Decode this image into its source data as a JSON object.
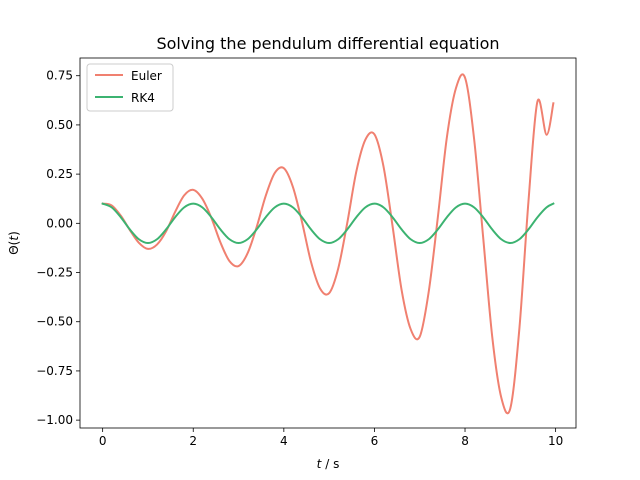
{
  "chart_data": {
    "type": "line",
    "title": "Solving the pendulum differential equation",
    "xlabel": "t / s",
    "ylabel": "Θ(t)",
    "xlim": [
      -0.5,
      10.45
    ],
    "ylim": [
      -1.04,
      0.84
    ],
    "xticks": [
      0,
      2,
      4,
      6,
      8,
      10
    ],
    "yticks": [
      -1.0,
      -0.75,
      -0.5,
      -0.25,
      0.0,
      0.25,
      0.5,
      0.75
    ],
    "xtick_labels": [
      "0",
      "2",
      "4",
      "6",
      "8",
      "10"
    ],
    "ytick_labels": [
      "−1.00",
      "−0.75",
      "−0.50",
      "−0.25",
      "0.00",
      "0.25",
      "0.50",
      "0.75"
    ],
    "grid": false,
    "legend_position": "upper left",
    "series": [
      {
        "name": "Euler",
        "color": "#f08070",
        "x": [
          0.0,
          0.2,
          0.4,
          0.6,
          0.8,
          1.0,
          1.2,
          1.4,
          1.6,
          1.8,
          2.0,
          2.2,
          2.4,
          2.6,
          2.8,
          3.0,
          3.2,
          3.4,
          3.6,
          3.8,
          4.0,
          4.2,
          4.4,
          4.6,
          4.8,
          5.0,
          5.2,
          5.4,
          5.6,
          5.8,
          6.0,
          6.2,
          6.4,
          6.6,
          6.8,
          7.0,
          7.2,
          7.4,
          7.6,
          7.8,
          8.0,
          8.2,
          8.4,
          8.6,
          8.8,
          9.0,
          9.2,
          9.4,
          9.6,
          9.8,
          9.95
        ],
        "y": [
          0.1,
          0.091,
          0.039,
          -0.034,
          -0.099,
          -0.13,
          -0.108,
          -0.041,
          0.058,
          0.142,
          0.17,
          0.125,
          0.028,
          -0.097,
          -0.192,
          -0.217,
          -0.152,
          -0.019,
          0.14,
          0.256,
          0.28,
          0.185,
          0.008,
          -0.196,
          -0.331,
          -0.355,
          -0.23,
          0.002,
          0.263,
          0.425,
          0.452,
          0.289,
          -0.014,
          -0.339,
          -0.538,
          -0.576,
          -0.345,
          0.031,
          0.438,
          0.687,
          0.74,
          0.43,
          -0.07,
          -0.575,
          -0.885,
          -0.94,
          -0.535,
          0.11,
          0.62,
          0.45,
          0.61
        ]
      },
      {
        "name": "RK4",
        "color": "#3cb371",
        "x": [
          0.0,
          0.2,
          0.4,
          0.6,
          0.8,
          1.0,
          1.2,
          1.4,
          1.6,
          1.8,
          2.0,
          2.2,
          2.4,
          2.6,
          2.8,
          3.0,
          3.2,
          3.4,
          3.6,
          3.8,
          4.0,
          4.2,
          4.4,
          4.6,
          4.8,
          5.0,
          5.2,
          5.4,
          5.6,
          5.8,
          6.0,
          6.2,
          6.4,
          6.6,
          6.8,
          7.0,
          7.2,
          7.4,
          7.6,
          7.8,
          8.0,
          8.2,
          8.4,
          8.6,
          8.8,
          9.0,
          9.2,
          9.4,
          9.6,
          9.8,
          9.95
        ],
        "y": [
          0.1,
          0.081,
          0.031,
          -0.031,
          -0.081,
          -0.1,
          -0.081,
          -0.031,
          0.031,
          0.081,
          0.1,
          0.081,
          0.031,
          -0.031,
          -0.081,
          -0.1,
          -0.081,
          -0.031,
          0.031,
          0.081,
          0.1,
          0.081,
          0.031,
          -0.031,
          -0.081,
          -0.1,
          -0.081,
          -0.031,
          0.031,
          0.081,
          0.1,
          0.081,
          0.031,
          -0.031,
          -0.081,
          -0.1,
          -0.081,
          -0.031,
          0.031,
          0.081,
          0.1,
          0.081,
          0.031,
          -0.031,
          -0.081,
          -0.1,
          -0.081,
          -0.031,
          0.031,
          0.081,
          0.1
        ]
      }
    ]
  }
}
